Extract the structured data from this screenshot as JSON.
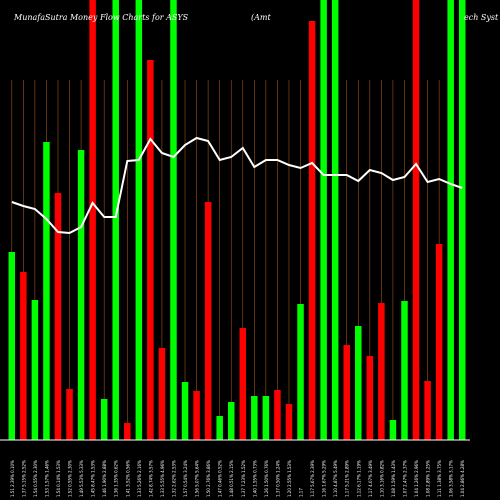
{
  "title": {
    "left": "MunafaSutra  Money Flow  Charts for ASYS",
    "mid": "(Amt",
    "right": "ech Syst"
  },
  "colors": {
    "background": "#000000",
    "up": "#00ff00",
    "down": "#ff0000",
    "grid": "#a0521e",
    "line": "#ffffff",
    "label": "#ffffff"
  },
  "chart_data": {
    "type": "bar",
    "title": "MunafaSutra  Money Flow  Charts for ASYS (Amt ... ech Syst",
    "ylim": [
      0,
      440
    ],
    "line_ylim": [
      0,
      440
    ],
    "grid": "vertical",
    "categories": [
      "Fri 31 Dec 2021",
      "Thu 30 Dec 2021",
      "Wed 29 Dec 2021",
      "Tue 28 Dec 2021",
      "Mon 27 Dec 2021",
      "Thu 23 Dec 2021",
      "Wed 22 Dec 2021",
      "Tue 21 Dec 2021",
      "Mon 20 Dec 2021",
      "Fri 17 Dec 2021",
      "Thu 16 Dec 2021",
      "Wed 15 Dec 2021",
      "Tue 14 Dec 2021",
      "Mon 13 Dec 2021",
      "Fri 10 Dec 2021",
      "Thu 09 Dec 2021",
      "Wed 08 Dec 2021",
      "Tue 07 Dec 2021",
      "Mon 06 Dec 2021",
      "Fri 03 Dec 2021",
      "Thu 02 Dec 2021",
      "Wed 01 Dec 2021",
      "Tue 30 Nov 2021",
      "Mon 29 Nov 2021",
      "Fri 26 Nov 2021",
      "Wed 24 Nov 2021",
      "Tue 23 Nov 2021",
      "Mon 22 Nov 2021",
      "Fri 19 Nov 2021",
      "Thu 18 Nov 2021",
      "Wed 17 Nov 2021",
      "Tue 16 Nov 2021",
      "Mon 15 Nov 2021",
      "Fri 12 Nov 2021",
      "Thu 11 Nov 2021",
      "Wed 10 Nov 2021",
      "Tue 09 Nov 2021",
      "Mon 08 Nov 2021",
      "Fri 05 Nov 2021",
      "Thu 04 Nov 2021"
    ],
    "x_labels": [
      "1.51 2.39% 0.10%",
      "1.37 5.15% 2.52%",
      "1.54 0.55% 2.30%",
      "1.53 1.57% 1.46%",
      "1.54 0.14% 1.53%",
      "1.52 0.55% 2.30%",
      "1.49 5.53% 5.33%",
      "1.45 8.47% 1.53%",
      "1.46 1.90% 2.88%",
      "1.36 1.35% 0.62%",
      "1.41 3.52% 0.56%",
      "1.33 5.26% 2.16%",
      "1.42 8.74% 3.57%",
      "1.33 5.55% 4.96%",
      "1.32 2.62% 2.53%",
      "1.57 0.54% 3.24%",
      "1.56 5.07% 5.64%",
      "1.50 2.76% 3.86%",
      "1.47 0.46% 0.52%",
      "1.48 0.51% 2.15%",
      "1.37 7.23% 1.52%",
      "1.40 1.55% 0.73%",
      "1.26 1.50% 0.76%",
      "1.37 0.50% 1.24%",
      "1.20 2.55% 1.53%",
      "1.17",
      "1.17 5.67% 2.39%",
      "1.16 1.67% 5.29%",
      "1.10 4.87% 5.49%",
      "1.17 5.21% 2.89%",
      "1.12 6.17% 1.19%",
      "1.17 4.07% 3.49%",
      "1.10 3.16% 0.82%",
      "1.08 1.59% 1.43%",
      "1.07 2.47% 2.37%",
      "1.04 1.26% 2.96%",
      "1.08 2.89% 1.25%",
      "1.11 1.38% 3.75%",
      "1.06 3.58% 3.17%",
      "1.04 2.86% 4.28%"
    ],
    "series": [
      {
        "type": "bar",
        "values": [
          188,
          168,
          140,
          298,
          247,
          51,
          290,
          440,
          41,
          440,
          17,
          440,
          380,
          92,
          440,
          58,
          49,
          238,
          24,
          38,
          112,
          44,
          44,
          50,
          36,
          136,
          419,
          440,
          440,
          95,
          114,
          84,
          137,
          20,
          139,
          440,
          59,
          196,
          440,
          440
        ],
        "directions": [
          "up",
          "down",
          "up",
          "up",
          "down",
          "down",
          "up",
          "down",
          "up",
          "up",
          "down",
          "up",
          "down",
          "down",
          "up",
          "up",
          "down",
          "down",
          "up",
          "up",
          "down",
          "up",
          "up",
          "down",
          "down",
          "up",
          "down",
          "up",
          "up",
          "down",
          "up",
          "down",
          "down",
          "up",
          "up",
          "down",
          "down",
          "down",
          "up",
          "up"
        ]
      },
      {
        "type": "line",
        "values": [
          238,
          234,
          231,
          221,
          208,
          207,
          213,
          237,
          223,
          223,
          279,
          280,
          301,
          287,
          283,
          295,
          302,
          299,
          280,
          283,
          292,
          273,
          280,
          280,
          275,
          272,
          277,
          265,
          265,
          265,
          259,
          270,
          267,
          260,
          263,
          276,
          258,
          261,
          256,
          252
        ]
      }
    ]
  }
}
